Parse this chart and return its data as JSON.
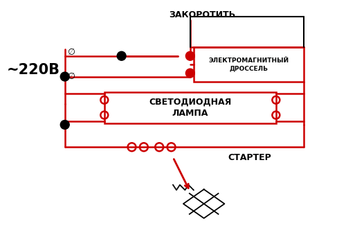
{
  "title": "",
  "bg_color": "#ffffff",
  "line_color": "#cc0000",
  "black_color": "#000000",
  "gray_color": "#888888",
  "text_220": "~220В",
  "text_zakorotit": "ЗАКОРОТИТЬ",
  "text_drossel": "ЭЛЕКТРОМАГНИТНЫЙ\nДРОССЕЛЬ",
  "text_lampa": "СВЕТОДИОДНАЯ\nЛАМПА",
  "text_starter": "СТАРТЕР",
  "fig_width": 5.0,
  "fig_height": 3.55
}
